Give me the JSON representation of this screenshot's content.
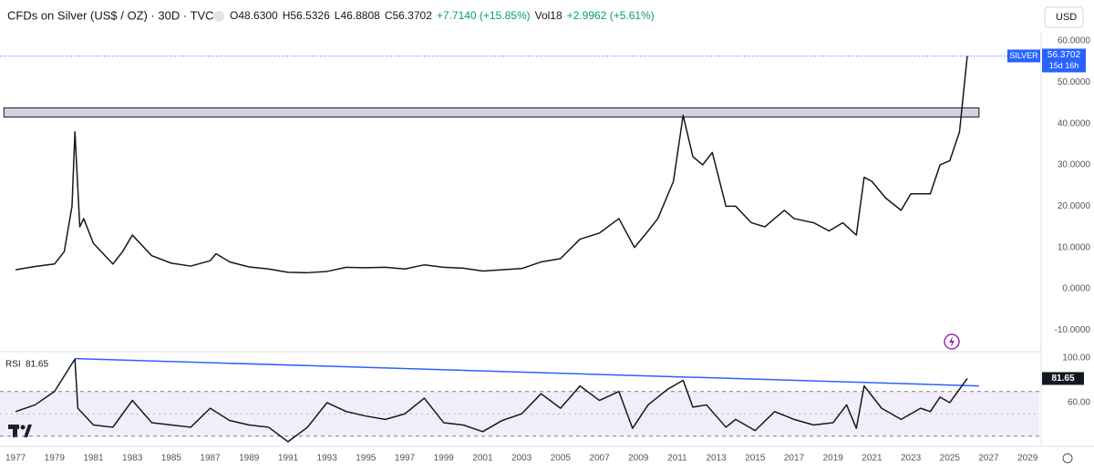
{
  "header": {
    "title": "CFDs on Silver (US$ / OZ) · 30D · TVC",
    "quote": [
      "O48.6300",
      "H56.5326",
      "L46.8808",
      "C56.3702",
      "+7.7140 (+15.85%)"
    ],
    "volume": [
      "Vol18",
      "+2.9962 (+5.61%)"
    ],
    "currency": "USD"
  },
  "chart_data": [
    {
      "type": "line",
      "x": [
        1977,
        1978,
        1979,
        1979.5,
        1979.9,
        1980.05,
        1980.3,
        1980.5,
        1981,
        1982,
        1982.5,
        1983,
        1984,
        1985,
        1986,
        1987,
        1987.3,
        1988,
        1989,
        1990,
        1991,
        1992,
        1993,
        1994,
        1995,
        1996,
        1997,
        1998,
        1999,
        2000,
        2001,
        2002,
        2003,
        2004,
        2005,
        2006,
        2007,
        2008,
        2008.8,
        2009.5,
        2010,
        2010.8,
        2011.3,
        2011.8,
        2012.3,
        2012.8,
        2013.5,
        2014,
        2014.8,
        2015.5,
        2016.5,
        2017,
        2018,
        2018.8,
        2019.5,
        2020.2,
        2020.6,
        2021,
        2021.7,
        2022.5,
        2023,
        2024,
        2024.5,
        2025,
        2025.5,
        2025.9
      ],
      "series": [
        {
          "name": "SILVER",
          "color": "#131722",
          "values": [
            4.6,
            5.4,
            6,
            9,
            20,
            38,
            15,
            17,
            11,
            6,
            9,
            13,
            8,
            6.2,
            5.5,
            6.8,
            8.5,
            6.5,
            5.3,
            4.8,
            4,
            3.9,
            4.2,
            5.2,
            5.1,
            5.2,
            4.8,
            5.8,
            5.2,
            5,
            4.3,
            4.6,
            4.9,
            6.5,
            7.3,
            12,
            13.5,
            17,
            10,
            14,
            17,
            26,
            42,
            32,
            30,
            33,
            20,
            20,
            16,
            15,
            19,
            17,
            16,
            14,
            16,
            13,
            27,
            26,
            22,
            19,
            23,
            23,
            30,
            31,
            38,
            56.3702
          ]
        }
      ],
      "countdown": "15d 16h",
      "tag_color": "#2962ff",
      "zone": {
        "xlim": [
          1976.4,
          2026.5
        ],
        "ylim": [
          41.6,
          43.8
        ],
        "color": "#d1d4dc"
      },
      "xlim": [
        1976.2,
        2029.6
      ],
      "ylim": [
        -15,
        62.2
      ],
      "yticks": [
        {
          "value": 60,
          "label": "60.0000"
        },
        {
          "value": 50,
          "label": "50.0000"
        },
        {
          "value": 40,
          "label": "40.0000"
        },
        {
          "value": 30,
          "label": "30.0000"
        },
        {
          "value": 20,
          "label": "20.0000"
        },
        {
          "value": 10,
          "label": "10.0000"
        },
        {
          "value": 0,
          "label": "0.0000"
        },
        {
          "value": -10,
          "label": "-10.0000"
        }
      ]
    },
    {
      "type": "line",
      "x": [
        1977,
        1978,
        1979,
        1979.9,
        1980.05,
        1980.2,
        1981,
        1982,
        1983,
        1984,
        1985,
        1986,
        1987,
        1988,
        1989,
        1990,
        1991,
        1992,
        1993,
        1994,
        1995,
        1996,
        1997,
        1998,
        1999,
        2000,
        2001,
        2002,
        2003,
        2004,
        2005,
        2006,
        2007,
        2008,
        2008.7,
        2009.5,
        2010.5,
        2011.3,
        2011.8,
        2012.5,
        2013.5,
        2014,
        2015,
        2016,
        2017,
        2018,
        2019,
        2019.7,
        2020.2,
        2020.6,
        2021.5,
        2022.5,
        2023.5,
        2024,
        2024.5,
        2025,
        2025.9
      ],
      "series": [
        {
          "name": "RSI",
          "color": "#131722",
          "values": [
            52,
            58,
            70,
            95,
            99,
            55,
            40,
            38,
            62,
            42,
            40,
            38,
            55,
            44,
            40,
            38,
            25,
            38,
            60,
            52,
            48,
            45,
            50,
            64,
            42,
            40,
            34,
            44,
            50,
            68,
            55,
            75,
            62,
            70,
            37,
            58,
            72,
            80,
            56,
            58,
            38,
            45,
            35,
            52,
            45,
            40,
            42,
            58,
            37,
            75,
            55,
            45,
            55,
            52,
            65,
            60,
            81.65
          ]
        }
      ],
      "trendline": {
        "x": [
          1980.05,
          2026.5
        ],
        "y": [
          99.5,
          75
        ],
        "color": "#2962ff"
      },
      "band": [
        30,
        70
      ],
      "midline": 50,
      "xlim": [
        1976.2,
        2029.6
      ],
      "ylim": [
        20.8,
        104.9
      ],
      "yticks": [
        {
          "value": 100,
          "label": "100.00"
        },
        {
          "value": 60,
          "label": "60.00"
        }
      ],
      "xticks": [
        1977,
        1979,
        1981,
        1983,
        1985,
        1987,
        1989,
        1991,
        1993,
        1995,
        1997,
        1999,
        2001,
        2003,
        2005,
        2007,
        2009,
        2011,
        2013,
        2015,
        2017,
        2019,
        2021,
        2023,
        2025,
        2027,
        2029
      ]
    }
  ]
}
